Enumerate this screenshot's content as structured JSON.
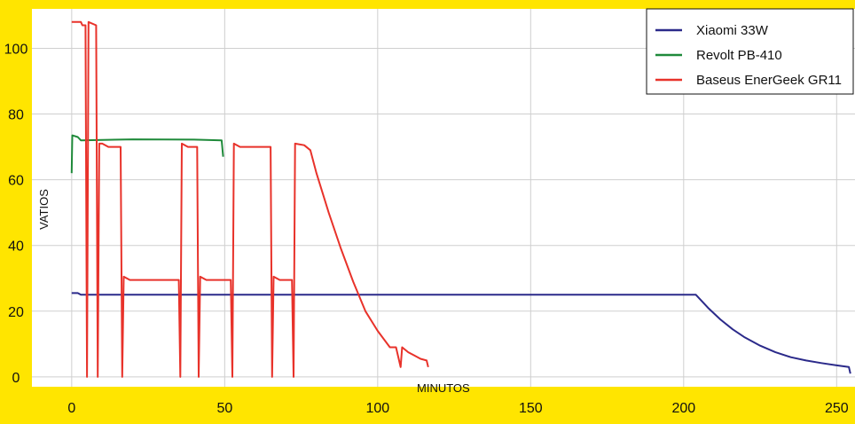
{
  "chart_data": {
    "type": "line",
    "title": "",
    "xlabel": "MINUTOS",
    "ylabel": "VATIOS",
    "xlim": [
      -13,
      256
    ],
    "ylim": [
      -3,
      112
    ],
    "x_ticks": [
      0,
      50,
      100,
      150,
      200,
      250
    ],
    "y_ticks": [
      0,
      20,
      40,
      60,
      80,
      100
    ],
    "grid": true,
    "legend_position": "top-right",
    "series": [
      {
        "name": "Xiaomi 33W",
        "color": "#2b2a8a",
        "x": [
          0,
          2,
          3,
          10,
          50,
          100,
          150,
          200,
          204,
          208,
          212,
          216,
          220,
          225,
          230,
          235,
          240,
          245,
          250,
          254,
          254.5
        ],
        "y": [
          25.5,
          25.5,
          25,
          25,
          25,
          25,
          25,
          25,
          25,
          21,
          17.5,
          14.5,
          12,
          9.5,
          7.5,
          6,
          5,
          4.2,
          3.5,
          3,
          1
        ]
      },
      {
        "name": "Revolt PB-410",
        "color": "#1f8a3a",
        "x": [
          0,
          0.2,
          2,
          3,
          20,
          40,
          49,
          49.5
        ],
        "y": [
          62,
          73.5,
          73,
          72,
          72.3,
          72.2,
          72,
          67
        ]
      },
      {
        "name": "Baseus EnerGeek GR11",
        "color": "#e8322a",
        "x": [
          0,
          3,
          3.5,
          4.5,
          5,
          5.5,
          8,
          8.5,
          9,
          10,
          12,
          16,
          16.5,
          17,
          19,
          35,
          35.5,
          36,
          38,
          41,
          41.5,
          42,
          44,
          52,
          52.5,
          53,
          55,
          65,
          65.5,
          66,
          68,
          72,
          72.5,
          73,
          76,
          78,
          80,
          84,
          88,
          92,
          96,
          100,
          104,
          106,
          107.5,
          108,
          110,
          112,
          114,
          116,
          116.5
        ],
        "y": [
          108,
          108,
          107,
          107,
          0,
          108,
          107,
          0,
          71,
          71,
          70,
          70,
          0,
          30.5,
          29.5,
          29.5,
          0,
          71,
          70,
          70,
          0,
          30.5,
          29.5,
          29.5,
          0,
          71,
          70,
          70,
          0,
          30.5,
          29.5,
          29.5,
          0,
          71,
          70.5,
          69,
          62,
          50,
          39,
          29,
          20,
          14,
          9,
          9,
          3,
          9,
          7.5,
          6.5,
          5.5,
          5,
          3
        ]
      }
    ]
  }
}
